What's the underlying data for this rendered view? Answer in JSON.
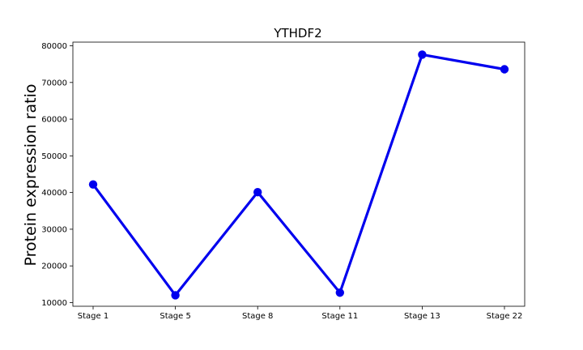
{
  "chart_data": {
    "type": "line",
    "title": "YTHDF2",
    "xlabel": "",
    "ylabel": "Protein expression ratio",
    "categories": [
      "Stage 1",
      "Stage 5",
      "Stage 8",
      "Stage 11",
      "Stage 13",
      "Stage 22"
    ],
    "series": [
      {
        "values": [
          42200,
          12000,
          40100,
          12700,
          77600,
          73600
        ],
        "color": "#0000ee"
      }
    ],
    "ylim": [
      9000,
      81000
    ],
    "yticks": [
      10000,
      20000,
      30000,
      40000,
      50000,
      60000,
      70000,
      80000
    ],
    "ytick_labels": [
      "10000",
      "20000",
      "30000",
      "40000",
      "50000",
      "60000",
      "70000",
      "80000"
    ],
    "grid": false,
    "legend": "none"
  }
}
